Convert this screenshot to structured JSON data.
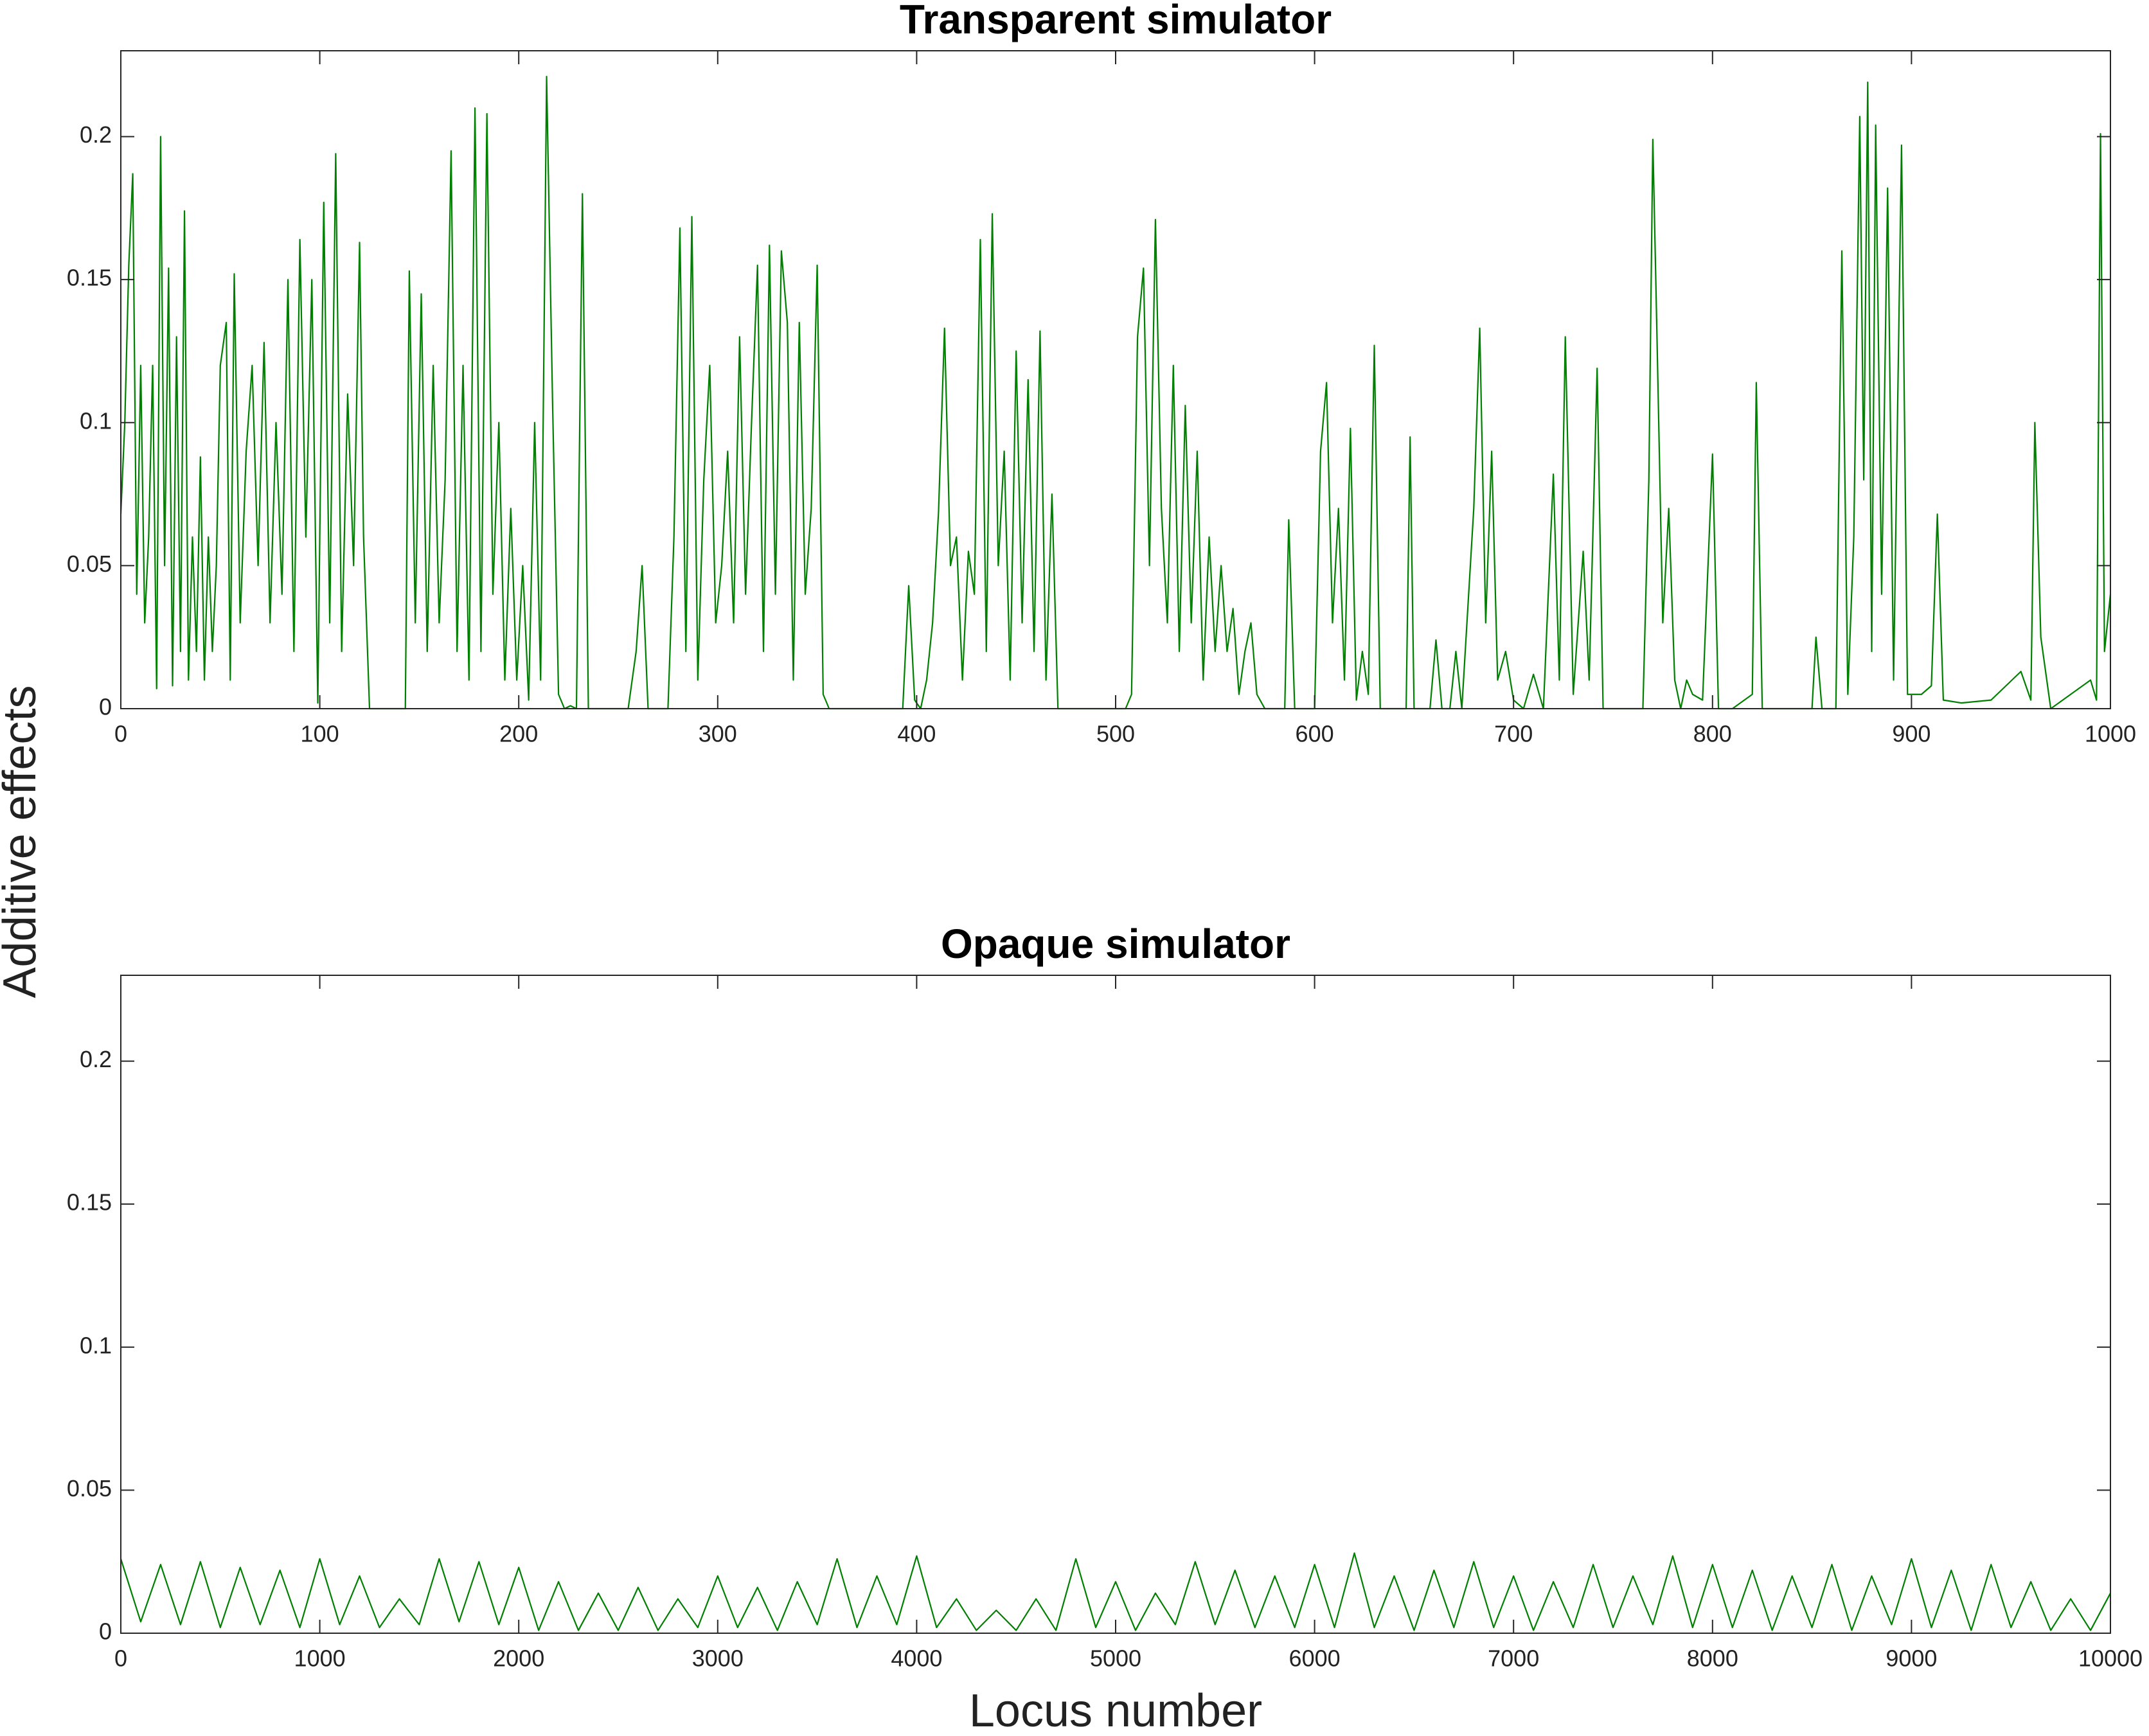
{
  "chart_data": [
    {
      "type": "line",
      "title": "Transparent simulator",
      "ylabel": "Additive effects",
      "xlim": [
        0,
        1000
      ],
      "xticks": [
        0,
        100,
        200,
        300,
        400,
        500,
        600,
        700,
        800,
        900,
        1000
      ],
      "ylim": [
        0,
        0.23
      ],
      "yticks": [
        0,
        0.05,
        0.1,
        0.15,
        0.2
      ],
      "series": [
        {
          "color": "#008000",
          "x": [
            0,
            2,
            4,
            6,
            8,
            10,
            12,
            14,
            16,
            18,
            20,
            22,
            24,
            26,
            28,
            30,
            32,
            34,
            36,
            38,
            40,
            42,
            44,
            46,
            48,
            50,
            53,
            55,
            57,
            60,
            63,
            66,
            69,
            72,
            75,
            78,
            81,
            84,
            87,
            90,
            93,
            96,
            99,
            102,
            105,
            108,
            111,
            114,
            117,
            120,
            122,
            125,
            143,
            145,
            148,
            151,
            154,
            157,
            160,
            163,
            166,
            169,
            172,
            175,
            178,
            181,
            184,
            187,
            190,
            193,
            196,
            199,
            202,
            205,
            208,
            211,
            214,
            217,
            220,
            223,
            226,
            229,
            232,
            235,
            255,
            259,
            262,
            265,
            275,
            278,
            281,
            284,
            287,
            290,
            293,
            296,
            299,
            302,
            305,
            308,
            311,
            314,
            317,
            320,
            323,
            326,
            329,
            332,
            335,
            338,
            341,
            344,
            347,
            350,
            353,
            356,
            393,
            396,
            399,
            402,
            405,
            408,
            411,
            414,
            417,
            420,
            423,
            426,
            429,
            432,
            435,
            438,
            441,
            444,
            447,
            450,
            453,
            456,
            459,
            462,
            465,
            468,
            471,
            505,
            508,
            511,
            514,
            517,
            520,
            523,
            526,
            529,
            532,
            535,
            538,
            541,
            544,
            547,
            550,
            553,
            556,
            559,
            562,
            565,
            568,
            571,
            575,
            585,
            587,
            590,
            600,
            603,
            606,
            609,
            612,
            615,
            618,
            621,
            624,
            627,
            630,
            633,
            640,
            646,
            648,
            650,
            658,
            661,
            664,
            668,
            671,
            674,
            680,
            683,
            686,
            689,
            692,
            696,
            700,
            705,
            710,
            715,
            720,
            723,
            726,
            730,
            735,
            738,
            742,
            745,
            750,
            765,
            768,
            770,
            772,
            775,
            778,
            781,
            784,
            787,
            790,
            795,
            800,
            803,
            810,
            820,
            822,
            825,
            850,
            852,
            855,
            862,
            865,
            868,
            871,
            874,
            876,
            878,
            880,
            882,
            885,
            888,
            891,
            895,
            898,
            905,
            910,
            913,
            916,
            925,
            940,
            955,
            960,
            962,
            965,
            970,
            990,
            993,
            995,
            997,
            1000
          ],
          "values": [
            0.068,
            0.1,
            0.155,
            0.187,
            0.04,
            0.12,
            0.03,
            0.06,
            0.12,
            0.007,
            0.2,
            0.05,
            0.154,
            0.008,
            0.13,
            0.02,
            0.174,
            0.01,
            0.06,
            0.02,
            0.088,
            0.01,
            0.06,
            0.02,
            0.05,
            0.12,
            0.135,
            0.01,
            0.152,
            0.03,
            0.09,
            0.12,
            0.05,
            0.128,
            0.03,
            0.1,
            0.04,
            0.15,
            0.02,
            0.164,
            0.06,
            0.15,
            0.002,
            0.177,
            0.03,
            0.194,
            0.02,
            0.11,
            0.05,
            0.163,
            0.06,
            0,
            0,
            0.153,
            0.03,
            0.145,
            0.02,
            0.12,
            0.03,
            0.08,
            0.195,
            0.02,
            0.12,
            0.01,
            0.21,
            0.02,
            0.208,
            0.04,
            0.1,
            0.01,
            0.07,
            0.01,
            0.05,
            0.003,
            0.1,
            0.01,
            0.221,
            0.107,
            0.005,
            0,
            0.001,
            0,
            0.18,
            0,
            0,
            0.02,
            0.05,
            0,
            0,
            0.06,
            0.168,
            0.02,
            0.172,
            0.01,
            0.08,
            0.12,
            0.03,
            0.05,
            0.09,
            0.03,
            0.13,
            0.04,
            0.1,
            0.155,
            0.02,
            0.162,
            0.04,
            0.16,
            0.135,
            0.01,
            0.135,
            0.04,
            0.07,
            0.155,
            0.005,
            0,
            0,
            0.043,
            0.003,
            0,
            0.01,
            0.03,
            0.069,
            0.133,
            0.05,
            0.06,
            0.01,
            0.055,
            0.04,
            0.164,
            0.02,
            0.173,
            0.05,
            0.09,
            0.01,
            0.125,
            0.03,
            0.115,
            0.02,
            0.132,
            0.01,
            0.075,
            0,
            0,
            0.005,
            0.13,
            0.154,
            0.05,
            0.171,
            0.07,
            0.03,
            0.12,
            0.02,
            0.106,
            0.03,
            0.09,
            0.01,
            0.06,
            0.02,
            0.05,
            0.02,
            0.035,
            0.005,
            0.02,
            0.03,
            0.005,
            0,
            0,
            0.066,
            0,
            0,
            0.09,
            0.114,
            0.03,
            0.07,
            0.01,
            0.098,
            0.003,
            0.02,
            0.005,
            0.127,
            0,
            0,
            0,
            0.095,
            0,
            0,
            0.024,
            0,
            0,
            0.02,
            0,
            0.07,
            0.133,
            0.03,
            0.09,
            0.01,
            0.02,
            0.003,
            0,
            0.012,
            0,
            0.082,
            0.01,
            0.13,
            0.005,
            0.055,
            0.01,
            0.119,
            0,
            0,
            0,
            0.08,
            0.199,
            0.133,
            0.03,
            0.07,
            0.01,
            0,
            0.01,
            0.005,
            0.003,
            0.089,
            0,
            0,
            0.005,
            0.114,
            0,
            0,
            0.025,
            0,
            0,
            0.16,
            0.005,
            0.06,
            0.207,
            0.08,
            0.219,
            0.02,
            0.204,
            0.04,
            0.182,
            0.01,
            0.197,
            0.005,
            0.005,
            0.008,
            0.068,
            0.003,
            0.002,
            0.003,
            0.013,
            0.003,
            0.1,
            0.025,
            0,
            0.01,
            0.003,
            0.201,
            0.02,
            0.04
          ]
        }
      ]
    },
    {
      "type": "line",
      "title": "Opaque simulator",
      "xlabel": "Locus number",
      "xlim": [
        0,
        10000
      ],
      "xticks": [
        0,
        1000,
        2000,
        3000,
        4000,
        5000,
        6000,
        7000,
        8000,
        9000,
        10000
      ],
      "ylim": [
        0,
        0.23
      ],
      "yticks": [
        0,
        0.05,
        0.1,
        0.15,
        0.2
      ],
      "series": [
        {
          "color": "#008000",
          "x": [
            0,
            100,
            200,
            300,
            400,
            500,
            600,
            700,
            800,
            900,
            1000,
            1100,
            1200,
            1300,
            1400,
            1500,
            1600,
            1700,
            1800,
            1900,
            2000,
            2100,
            2200,
            2300,
            2400,
            2500,
            2600,
            2700,
            2800,
            2900,
            3000,
            3100,
            3200,
            3300,
            3400,
            3500,
            3600,
            3700,
            3800,
            3900,
            4000,
            4100,
            4200,
            4300,
            4400,
            4500,
            4600,
            4700,
            4800,
            4900,
            5000,
            5100,
            5200,
            5300,
            5400,
            5500,
            5600,
            5700,
            5800,
            5900,
            6000,
            6100,
            6200,
            6300,
            6400,
            6500,
            6600,
            6700,
            6800,
            6900,
            7000,
            7100,
            7200,
            7300,
            7400,
            7500,
            7600,
            7700,
            7800,
            7900,
            8000,
            8100,
            8200,
            8300,
            8400,
            8500,
            8600,
            8700,
            8800,
            8900,
            9000,
            9100,
            9200,
            9300,
            9400,
            9500,
            9600,
            9700,
            9800,
            9900,
            10000
          ],
          "values": [
            0.026,
            0.004,
            0.024,
            0.003,
            0.025,
            0.002,
            0.023,
            0.003,
            0.022,
            0.002,
            0.026,
            0.003,
            0.02,
            0.002,
            0.012,
            0.003,
            0.026,
            0.004,
            0.025,
            0.003,
            0.023,
            0.001,
            0.018,
            0.001,
            0.014,
            0.001,
            0.016,
            0.001,
            0.012,
            0.002,
            0.02,
            0.002,
            0.016,
            0.001,
            0.018,
            0.003,
            0.026,
            0.002,
            0.02,
            0.003,
            0.027,
            0.002,
            0.012,
            0.001,
            0.008,
            0.001,
            0.012,
            0.001,
            0.026,
            0.002,
            0.018,
            0.001,
            0.014,
            0.003,
            0.025,
            0.003,
            0.022,
            0.002,
            0.02,
            0.002,
            0.024,
            0.002,
            0.028,
            0.002,
            0.02,
            0.001,
            0.022,
            0.002,
            0.025,
            0.002,
            0.02,
            0.001,
            0.018,
            0.002,
            0.024,
            0.002,
            0.02,
            0.003,
            0.027,
            0.002,
            0.024,
            0.002,
            0.022,
            0.001,
            0.02,
            0.002,
            0.024,
            0.001,
            0.02,
            0.003,
            0.026,
            0.002,
            0.022,
            0.001,
            0.024,
            0.002,
            0.018,
            0.001,
            0.012,
            0.001,
            0.014
          ]
        }
      ]
    }
  ]
}
